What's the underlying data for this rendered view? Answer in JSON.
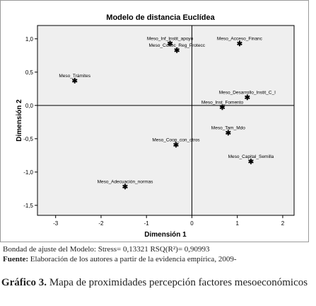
{
  "chart_data": {
    "type": "scatter",
    "title": "Modelo de distancia Euclídea",
    "xlabel": "Dimensión 1",
    "ylabel": "Dimensión 2",
    "xlim": [
      -3.4,
      2.25
    ],
    "ylim": [
      -1.65,
      1.2
    ],
    "xticks": [
      -3,
      -2,
      -1,
      0,
      1,
      2
    ],
    "yticks": [
      1.0,
      0.5,
      0.0,
      -0.5,
      -1.0,
      -1.5
    ],
    "ytick_labels": [
      "1,0",
      "0,5",
      "0,0",
      "-0,5",
      "-1,0",
      "-1,5"
    ],
    "grid": false,
    "zero_lines": true,
    "points": [
      {
        "label": "Meso_Inf_Instit_apoyo",
        "x": -0.48,
        "y": 0.93
      },
      {
        "label": "Meso_Acceso_Financ",
        "x": 1.05,
        "y": 0.93
      },
      {
        "label": "Meso_Conoc_Reg_Protecc",
        "x": -0.33,
        "y": 0.83
      },
      {
        "label": "Meso_Trámites",
        "x": -2.58,
        "y": 0.37
      },
      {
        "label": "Meso_Desarrollo_Instit_C_I",
        "x": 1.22,
        "y": 0.12
      },
      {
        "label": "Meso_Inst_Fomento",
        "x": 0.67,
        "y": -0.03
      },
      {
        "label": "Meso_Tam_Mdo",
        "x": 0.8,
        "y": -0.41
      },
      {
        "label": "Meso_Coop_con_otros",
        "x": -0.35,
        "y": -0.59
      },
      {
        "label": "Meso_Capital_Semilla",
        "x": 1.3,
        "y": -0.84
      },
      {
        "label": "Meso_Adecuación_normas",
        "x": -1.47,
        "y": -1.22
      }
    ]
  },
  "colors": {
    "plot_bg": "#efefef",
    "frame": "#000000",
    "marker": "#000000"
  },
  "footnotes": {
    "bondad": "Bondad de ajuste del Modelo: Stress= 0,13321 RSQ(R²)= 0,90993",
    "fuente_label": "Fuente:",
    "fuente_text": " Elaboración de los autores a partir de la evidencia empírica, 2009-"
  },
  "caption": {
    "prefix": "Gráfico 3.",
    "text": " Mapa de proximidades percepción factores mesoeconómicos"
  }
}
